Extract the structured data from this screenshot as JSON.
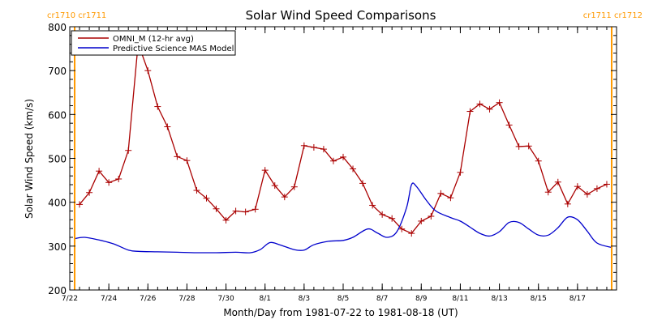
{
  "chart_data": {
    "type": "line",
    "title": "Solar Wind Speed Comparisons",
    "xlabel": "Month/Day from 1981-07-22 to 1981-08-18 (UT)",
    "ylabel": "Solar Wind Speed (km/s)",
    "xlim": [
      "1981-07-22T00:00",
      "1981-08-19T00:00"
    ],
    "ylim": [
      200,
      800
    ],
    "x_ticks": [
      "7/22",
      "7/24",
      "7/26",
      "7/28",
      "7/30",
      "8/1",
      "8/3",
      "8/5",
      "8/7",
      "8/9",
      "8/11",
      "8/13",
      "8/15",
      "8/17"
    ],
    "x_tick_dates": [
      "1981-07-22",
      "1981-07-24",
      "1981-07-26",
      "1981-07-28",
      "1981-07-30",
      "1981-08-01",
      "1981-08-03",
      "1981-08-05",
      "1981-08-07",
      "1981-08-09",
      "1981-08-11",
      "1981-08-13",
      "1981-08-15",
      "1981-08-17"
    ],
    "y_ticks": [
      "200",
      "300",
      "400",
      "500",
      "600",
      "700",
      "800"
    ],
    "y_tick_values": [
      200,
      300,
      400,
      500,
      600,
      700,
      800
    ],
    "legend_position": "top-left",
    "grid": false,
    "carrington_markers": [
      {
        "label": "cr1710 cr1711",
        "date": "1981-07-22T06:00",
        "side": "left"
      },
      {
        "label": "cr1711 cr1712",
        "date": "1981-08-18T18:00",
        "side": "right"
      }
    ],
    "marker_color": "#ff9900",
    "series": [
      {
        "name": "OMNI_M (12-hr avg)",
        "color": "#aa0000",
        "marker": "plus",
        "x": [
          "1981-07-22T12:00",
          "1981-07-23T00:00",
          "1981-07-23T12:00",
          "1981-07-24T00:00",
          "1981-07-24T12:00",
          "1981-07-25T00:00",
          "1981-07-25T12:00",
          "1981-07-26T00:00",
          "1981-07-26T12:00",
          "1981-07-27T00:00",
          "1981-07-27T12:00",
          "1981-07-28T00:00",
          "1981-07-28T12:00",
          "1981-07-29T00:00",
          "1981-07-29T12:00",
          "1981-07-30T00:00",
          "1981-07-30T12:00",
          "1981-07-31T00:00",
          "1981-07-31T12:00",
          "1981-08-01T00:00",
          "1981-08-01T12:00",
          "1981-08-02T00:00",
          "1981-08-02T12:00",
          "1981-08-03T00:00",
          "1981-08-03T12:00",
          "1981-08-04T00:00",
          "1981-08-04T12:00",
          "1981-08-05T00:00",
          "1981-08-05T12:00",
          "1981-08-06T00:00",
          "1981-08-06T12:00",
          "1981-08-07T00:00",
          "1981-08-07T12:00",
          "1981-08-08T00:00",
          "1981-08-08T12:00",
          "1981-08-09T00:00",
          "1981-08-09T12:00",
          "1981-08-10T00:00",
          "1981-08-10T12:00",
          "1981-08-11T00:00",
          "1981-08-11T12:00",
          "1981-08-12T00:00",
          "1981-08-12T12:00",
          "1981-08-13T00:00",
          "1981-08-13T12:00",
          "1981-08-14T00:00",
          "1981-08-14T12:00",
          "1981-08-15T00:00",
          "1981-08-15T12:00",
          "1981-08-16T00:00",
          "1981-08-16T12:00",
          "1981-08-17T00:00",
          "1981-08-17T12:00",
          "1981-08-18T00:00",
          "1981-08-18T12:00"
        ],
        "y": [
          395,
          422,
          471,
          445,
          453,
          518,
          762,
          700,
          618,
          572,
          504,
          495,
          427,
          409,
          385,
          359,
          380,
          378,
          384,
          473,
          438,
          412,
          435,
          529,
          525,
          521,
          494,
          503,
          476,
          443,
          393,
          372,
          363,
          339,
          329,
          357,
          368,
          420,
          410,
          468,
          607,
          624,
          612,
          627,
          576,
          527,
          528,
          494,
          423,
          446,
          396,
          436,
          418,
          431,
          441
        ]
      },
      {
        "name": "Predictive Science MAS Model",
        "color": "#0000cc",
        "marker": "none",
        "x": [
          "1981-07-22T06:00",
          "1981-07-22T18:00",
          "1981-07-23T12:00",
          "1981-07-24T06:00",
          "1981-07-25T00:00",
          "1981-07-25T12:00",
          "1981-07-26T12:00",
          "1981-07-27T12:00",
          "1981-07-28T12:00",
          "1981-07-29T12:00",
          "1981-07-30T12:00",
          "1981-07-31T06:00",
          "1981-07-31T18:00",
          "1981-08-01T06:00",
          "1981-08-01T18:00",
          "1981-08-02T12:00",
          "1981-08-03T00:00",
          "1981-08-03T12:00",
          "1981-08-04T06:00",
          "1981-08-05T00:00",
          "1981-08-05T12:00",
          "1981-08-06T06:00",
          "1981-08-06T18:00",
          "1981-08-07T06:00",
          "1981-08-07T18:00",
          "1981-08-08T06:00",
          "1981-08-08T12:00",
          "1981-08-08T18:00",
          "1981-08-09T06:00",
          "1981-08-09T18:00",
          "1981-08-10T12:00",
          "1981-08-11T00:00",
          "1981-08-11T12:00",
          "1981-08-12T00:00",
          "1981-08-12T12:00",
          "1981-08-13T00:00",
          "1981-08-13T12:00",
          "1981-08-14T00:00",
          "1981-08-14T12:00",
          "1981-08-15T00:00",
          "1981-08-15T12:00",
          "1981-08-16T00:00",
          "1981-08-16T12:00",
          "1981-08-17T00:00",
          "1981-08-17T12:00",
          "1981-08-18T00:00",
          "1981-08-18T18:00"
        ],
        "y": [
          317,
          320,
          314,
          305,
          291,
          288,
          287,
          286,
          285,
          285,
          286,
          285,
          292,
          308,
          303,
          292,
          291,
          303,
          311,
          313,
          320,
          339,
          330,
          320,
          333,
          388,
          440,
          436,
          405,
          380,
          365,
          357,
          343,
          329,
          323,
          333,
          354,
          354,
          339,
          325,
          325,
          342,
          366,
          360,
          334,
          307,
          297
        ]
      }
    ]
  }
}
